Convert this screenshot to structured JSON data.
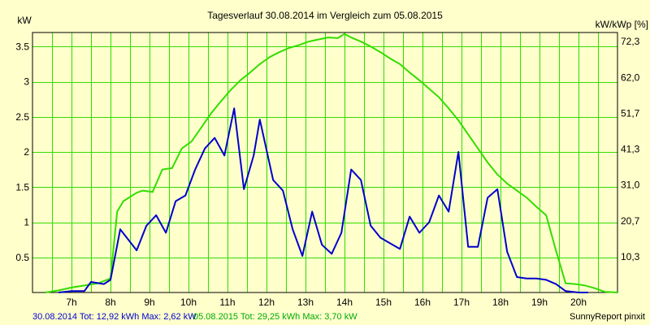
{
  "chart_data": {
    "type": "line",
    "title": "Tagesverlauf 30.08.2014 im Vergleich zum 05.08.2015",
    "ylabel_left": "kW",
    "ylabel_right": "kW/kWp [%]",
    "ylim": [
      0,
      3.7
    ],
    "yticks_left": [
      {
        "v": 0.5,
        "label": "0.5"
      },
      {
        "v": 1,
        "label": "1"
      },
      {
        "v": 1.5,
        "label": "1.5"
      },
      {
        "v": 2,
        "label": "2"
      },
      {
        "v": 2.5,
        "label": "2.5"
      },
      {
        "v": 3,
        "label": "3"
      },
      {
        "v": 3.5,
        "label": "3.5"
      }
    ],
    "yticks_right": [
      {
        "v": 0.51,
        "label": "10,3"
      },
      {
        "v": 1.02,
        "label": "20,7"
      },
      {
        "v": 1.53,
        "label": "31,0"
      },
      {
        "v": 2.04,
        "label": "41,3"
      },
      {
        "v": 2.55,
        "label": "51,7"
      },
      {
        "v": 3.06,
        "label": "62,0"
      },
      {
        "v": 3.57,
        "label": "72,3"
      }
    ],
    "xlim": [
      6,
      21
    ],
    "xticks": [
      {
        "v": 7,
        "label": "7h"
      },
      {
        "v": 8,
        "label": "8h"
      },
      {
        "v": 9,
        "label": "9h"
      },
      {
        "v": 10,
        "label": "10h"
      },
      {
        "v": 11,
        "label": "11h"
      },
      {
        "v": 12,
        "label": "12h"
      },
      {
        "v": 13,
        "label": "13h"
      },
      {
        "v": 14,
        "label": "14h"
      },
      {
        "v": 15,
        "label": "15h"
      },
      {
        "v": 16,
        "label": "16h"
      },
      {
        "v": 17,
        "label": "17h"
      },
      {
        "v": 18,
        "label": "18h"
      },
      {
        "v": 19,
        "label": "19h"
      },
      {
        "v": 20,
        "label": "20h"
      }
    ],
    "grid": true,
    "series": [
      {
        "name": "30.08.2014",
        "color": "#0000CC",
        "points": [
          [
            6.67,
            0.0
          ],
          [
            7.0,
            0.02
          ],
          [
            7.33,
            0.02
          ],
          [
            7.5,
            0.15
          ],
          [
            7.83,
            0.12
          ],
          [
            8.0,
            0.18
          ],
          [
            8.25,
            0.9
          ],
          [
            8.67,
            0.6
          ],
          [
            8.92,
            0.95
          ],
          [
            9.17,
            1.1
          ],
          [
            9.42,
            0.85
          ],
          [
            9.67,
            1.3
          ],
          [
            9.92,
            1.38
          ],
          [
            10.17,
            1.75
          ],
          [
            10.42,
            2.05
          ],
          [
            10.67,
            2.2
          ],
          [
            10.92,
            1.95
          ],
          [
            11.17,
            2.62
          ],
          [
            11.42,
            1.47
          ],
          [
            11.67,
            1.95
          ],
          [
            11.83,
            2.46
          ],
          [
            12.17,
            1.6
          ],
          [
            12.42,
            1.45
          ],
          [
            12.67,
            0.9
          ],
          [
            12.92,
            0.52
          ],
          [
            13.17,
            1.15
          ],
          [
            13.42,
            0.68
          ],
          [
            13.67,
            0.55
          ],
          [
            13.92,
            0.85
          ],
          [
            14.17,
            1.75
          ],
          [
            14.42,
            1.6
          ],
          [
            14.67,
            0.95
          ],
          [
            14.92,
            0.78
          ],
          [
            15.17,
            0.7
          ],
          [
            15.42,
            0.62
          ],
          [
            15.67,
            1.08
          ],
          [
            15.92,
            0.85
          ],
          [
            16.17,
            1.0
          ],
          [
            16.42,
            1.38
          ],
          [
            16.67,
            1.15
          ],
          [
            16.92,
            2.0
          ],
          [
            17.17,
            0.65
          ],
          [
            17.42,
            0.65
          ],
          [
            17.67,
            1.35
          ],
          [
            17.92,
            1.47
          ],
          [
            18.17,
            0.58
          ],
          [
            18.42,
            0.22
          ],
          [
            18.67,
            0.2
          ],
          [
            18.92,
            0.2
          ],
          [
            19.17,
            0.18
          ],
          [
            19.42,
            0.12
          ],
          [
            19.67,
            0.02
          ],
          [
            20.0,
            0.0
          ],
          [
            20.25,
            0.0
          ]
        ]
      },
      {
        "name": "05.08.2015",
        "color": "#33DD00",
        "points": [
          [
            6.33,
            0.0
          ],
          [
            6.67,
            0.03
          ],
          [
            7.0,
            0.07
          ],
          [
            7.33,
            0.1
          ],
          [
            7.67,
            0.13
          ],
          [
            8.0,
            0.2
          ],
          [
            8.17,
            1.15
          ],
          [
            8.33,
            1.3
          ],
          [
            8.67,
            1.42
          ],
          [
            8.83,
            1.45
          ],
          [
            9.08,
            1.43
          ],
          [
            9.33,
            1.75
          ],
          [
            9.58,
            1.77
          ],
          [
            9.83,
            2.05
          ],
          [
            10.08,
            2.15
          ],
          [
            10.33,
            2.35
          ],
          [
            10.58,
            2.55
          ],
          [
            10.83,
            2.72
          ],
          [
            11.08,
            2.88
          ],
          [
            11.33,
            3.02
          ],
          [
            11.58,
            3.13
          ],
          [
            11.83,
            3.25
          ],
          [
            12.08,
            3.35
          ],
          [
            12.33,
            3.42
          ],
          [
            12.58,
            3.48
          ],
          [
            12.83,
            3.52
          ],
          [
            13.08,
            3.57
          ],
          [
            13.33,
            3.6
          ],
          [
            13.58,
            3.63
          ],
          [
            13.83,
            3.62
          ],
          [
            14.0,
            3.68
          ],
          [
            14.17,
            3.63
          ],
          [
            14.42,
            3.57
          ],
          [
            14.67,
            3.5
          ],
          [
            14.92,
            3.42
          ],
          [
            15.17,
            3.33
          ],
          [
            15.42,
            3.25
          ],
          [
            15.67,
            3.13
          ],
          [
            15.92,
            3.02
          ],
          [
            16.17,
            2.9
          ],
          [
            16.42,
            2.78
          ],
          [
            16.67,
            2.62
          ],
          [
            16.92,
            2.45
          ],
          [
            17.17,
            2.25
          ],
          [
            17.42,
            2.05
          ],
          [
            17.67,
            1.85
          ],
          [
            17.92,
            1.68
          ],
          [
            18.17,
            1.55
          ],
          [
            18.42,
            1.45
          ],
          [
            18.67,
            1.35
          ],
          [
            18.92,
            1.22
          ],
          [
            19.17,
            1.1
          ],
          [
            19.42,
            0.6
          ],
          [
            19.67,
            0.13
          ],
          [
            19.92,
            0.12
          ],
          [
            20.17,
            0.1
          ],
          [
            20.42,
            0.06
          ],
          [
            20.67,
            0.01
          ],
          [
            21.0,
            0.0
          ]
        ]
      }
    ]
  },
  "footer": {
    "left_blue": "30.08.2014 Tot: 12,92 kWh Max: 2,62 kW",
    "left_green": "05.08.2015 Tot: 29,25 kWh Max: 3,70 kW",
    "right": "SunnyReport pinxit"
  },
  "colors": {
    "background": "#FFFFCC",
    "grid": "#33DD00",
    "series_2014": "#0000CC",
    "series_2015": "#33DD00"
  }
}
